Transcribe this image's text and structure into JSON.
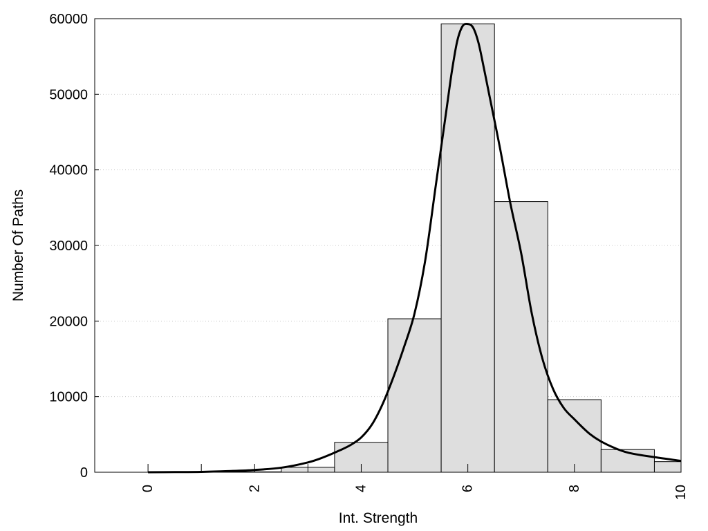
{
  "chart_data": {
    "type": "bar",
    "title": "",
    "xlabel": "Int. Strength",
    "ylabel": "Number Of Paths",
    "xlim": [
      -1,
      10
    ],
    "ylim": [
      0,
      60000
    ],
    "x_ticks": [
      0,
      2,
      4,
      6,
      8,
      10
    ],
    "x_tick_labels": [
      "0",
      "2",
      "4",
      "6",
      "8",
      "10"
    ],
    "y_ticks": [
      0,
      10000,
      20000,
      30000,
      40000,
      50000,
      60000
    ],
    "y_tick_labels": [
      "0",
      "10000",
      "20000",
      "30000",
      "40000",
      "50000",
      "60000"
    ],
    "minor_x_ticks": [
      1,
      3
    ],
    "grid": "horizontal dotted",
    "legend": "none",
    "bar_width": 1,
    "bar_fill": "#dedede",
    "bar_stroke": "#000000",
    "bars": [
      {
        "x": 0,
        "value": 0
      },
      {
        "x": 1,
        "value": 0
      },
      {
        "x": 2,
        "value": 50
      },
      {
        "x": 3,
        "value": 650
      },
      {
        "x": 4,
        "value": 3950
      },
      {
        "x": 5,
        "value": 20300
      },
      {
        "x": 6,
        "value": 59300
      },
      {
        "x": 7,
        "value": 35800
      },
      {
        "x": 8,
        "value": 9600
      },
      {
        "x": 9,
        "value": 3000
      },
      {
        "x": 10,
        "value": 1400
      }
    ],
    "curve": {
      "x": [
        0,
        0.5,
        1,
        1.5,
        2,
        2.5,
        3,
        3.3,
        3.6,
        3.8,
        4,
        4.2,
        4.4,
        4.6,
        4.8,
        5,
        5.2,
        5.4,
        5.6,
        5.7,
        5.8,
        5.9,
        6,
        6.1,
        6.2,
        6.3,
        6.4,
        6.6,
        6.8,
        7,
        7.2,
        7.4,
        7.6,
        7.8,
        8,
        8.3,
        8.6,
        9,
        9.5,
        10
      ],
      "y": [
        0,
        20,
        50,
        150,
        300,
        600,
        1300,
        2000,
        2900,
        3600,
        4600,
        6300,
        9000,
        12500,
        16500,
        21000,
        28000,
        38000,
        48000,
        53000,
        57000,
        59000,
        59300,
        58800,
        56800,
        53500,
        50000,
        43000,
        35500,
        29000,
        21000,
        15000,
        11000,
        8500,
        7000,
        5000,
        3700,
        2600,
        2000,
        1500
      ]
    },
    "curve_color": "#000000"
  }
}
